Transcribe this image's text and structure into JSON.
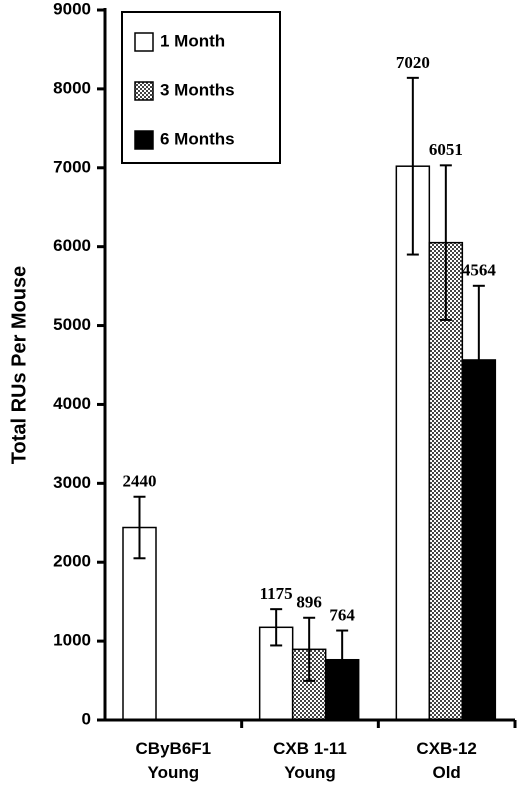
{
  "chart_data": {
    "type": "bar",
    "y_label": "Total RUs Per Mouse",
    "categories": [
      "CByB6F1\nYoung",
      "CXB 1-11\nYoung",
      "CXB-12\nOld"
    ],
    "series": [
      {
        "name": "1 Month",
        "color": "#ffffff",
        "values": [
          2440,
          1175,
          7020
        ],
        "errors": [
          390,
          230,
          1120
        ]
      },
      {
        "name": "3 Months",
        "color": "#999999",
        "hatch": "checker",
        "values": [
          null,
          896,
          6051
        ],
        "errors": [
          null,
          400,
          980
        ]
      },
      {
        "name": "6 Months",
        "color": "#000000",
        "values": [
          null,
          764,
          4564
        ],
        "errors": [
          null,
          370,
          940
        ]
      }
    ],
    "ylim": [
      0,
      9000
    ],
    "yticks": [
      0,
      1000,
      2000,
      3000,
      4000,
      5000,
      6000,
      7000,
      8000,
      9000
    ]
  }
}
